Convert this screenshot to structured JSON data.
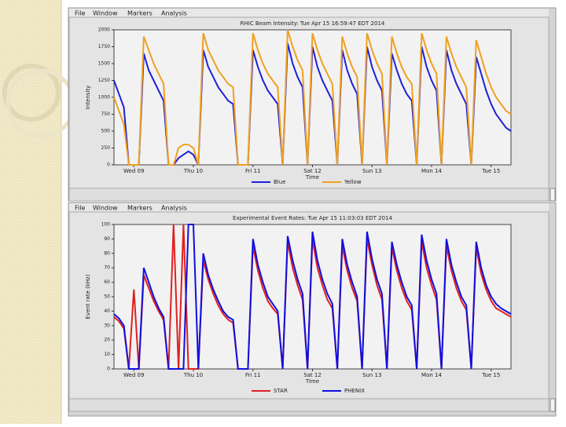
{
  "menus": [
    [
      "File",
      "Window",
      "Markers",
      "Analysis"
    ],
    [
      "File",
      "Window",
      "Markers",
      "Analysis"
    ]
  ],
  "chart_data": [
    {
      "type": "line",
      "title": "RHIC Beam Intensity: Tue Apr 15 16:59:47 EDT 2014",
      "x_label": "Time",
      "y_label": "Intensity",
      "x": [
        0,
        2,
        4,
        6,
        8,
        10,
        12,
        14,
        16,
        18,
        20,
        22,
        24,
        26,
        28,
        30,
        32,
        34,
        36,
        38,
        40,
        42,
        44,
        46,
        48,
        50,
        52,
        54,
        56,
        58,
        60,
        62,
        64,
        66,
        68,
        70,
        72,
        74,
        76,
        78,
        80,
        82,
        84,
        86,
        88,
        90,
        92,
        94,
        96,
        98,
        100,
        102,
        104,
        106,
        108,
        110,
        112,
        114,
        116,
        118,
        120,
        122,
        124,
        126,
        128,
        130,
        132,
        134,
        136,
        138,
        140,
        142,
        144,
        146,
        148,
        150,
        152,
        154,
        156,
        158,
        160
      ],
      "xlim": [
        0,
        160
      ],
      "xticks": [
        {
          "value": 8,
          "label": "Wed 09"
        },
        {
          "value": 32,
          "label": "Thu 10"
        },
        {
          "value": 56,
          "label": "Fri 11"
        },
        {
          "value": 80,
          "label": "Sat 12"
        },
        {
          "value": 104,
          "label": "Sun 13"
        },
        {
          "value": 128,
          "label": "Mon 14"
        },
        {
          "value": 152,
          "label": "Tue 15"
        }
      ],
      "ylim": [
        0,
        2000
      ],
      "yticks": [
        0,
        250,
        500,
        750,
        1000,
        1250,
        1500,
        1750,
        2000
      ],
      "series": [
        {
          "name": "Blue",
          "color": "#2020d8",
          "values": [
            1250,
            1050,
            850,
            0,
            0,
            0,
            1650,
            1400,
            1250,
            1100,
            950,
            0,
            0,
            100,
            150,
            200,
            150,
            0,
            1700,
            1450,
            1300,
            1150,
            1050,
            950,
            900,
            0,
            0,
            0,
            1700,
            1450,
            1250,
            1100,
            1000,
            900,
            0,
            1800,
            1500,
            1300,
            1150,
            0,
            1750,
            1450,
            1250,
            1100,
            950,
            0,
            1700,
            1400,
            1200,
            1050,
            0,
            1750,
            1450,
            1250,
            1100,
            0,
            1650,
            1400,
            1200,
            1050,
            950,
            0,
            1750,
            1450,
            1250,
            1100,
            0,
            1700,
            1400,
            1200,
            1050,
            900,
            0,
            1600,
            1350,
            1100,
            900,
            750,
            650,
            550,
            500
          ]
        },
        {
          "name": "Yellow",
          "color": "#f0a020",
          "values": [
            1000,
            800,
            600,
            0,
            0,
            0,
            1900,
            1700,
            1500,
            1350,
            1200,
            0,
            0,
            250,
            300,
            300,
            250,
            0,
            1950,
            1700,
            1550,
            1400,
            1300,
            1200,
            1150,
            0,
            0,
            0,
            1950,
            1700,
            1500,
            1350,
            1250,
            1150,
            0,
            2000,
            1750,
            1550,
            1400,
            0,
            1950,
            1700,
            1500,
            1350,
            1200,
            0,
            1900,
            1650,
            1450,
            1300,
            0,
            1950,
            1700,
            1500,
            1350,
            0,
            1900,
            1650,
            1450,
            1300,
            1200,
            0,
            1950,
            1700,
            1500,
            1350,
            0,
            1900,
            1650,
            1450,
            1300,
            1150,
            0,
            1850,
            1600,
            1350,
            1150,
            1000,
            900,
            800,
            750
          ]
        }
      ]
    },
    {
      "type": "line",
      "title": "Experimental Event Rates: Tue Apr 15 11:03:03 EDT 2014",
      "x_label": "Time",
      "y_label": "Event rate (kHz)",
      "x": [
        0,
        2,
        4,
        6,
        8,
        10,
        12,
        14,
        16,
        18,
        20,
        22,
        24,
        26,
        28,
        30,
        32,
        34,
        36,
        38,
        40,
        42,
        44,
        46,
        48,
        50,
        52,
        54,
        56,
        58,
        60,
        62,
        64,
        66,
        68,
        70,
        72,
        74,
        76,
        78,
        80,
        82,
        84,
        86,
        88,
        90,
        92,
        94,
        96,
        98,
        100,
        102,
        104,
        106,
        108,
        110,
        112,
        114,
        116,
        118,
        120,
        122,
        124,
        126,
        128,
        130,
        132,
        134,
        136,
        138,
        140,
        142,
        144,
        146,
        148,
        150,
        152,
        154,
        156,
        158,
        160
      ],
      "xlim": [
        0,
        160
      ],
      "xticks": [
        {
          "value": 8,
          "label": "Wed 09"
        },
        {
          "value": 32,
          "label": "Thu 10"
        },
        {
          "value": 56,
          "label": "Fri 11"
        },
        {
          "value": 80,
          "label": "Sat 12"
        },
        {
          "value": 104,
          "label": "Sun 13"
        },
        {
          "value": 128,
          "label": "Mon 14"
        },
        {
          "value": 152,
          "label": "Tue 15"
        }
      ],
      "ylim": [
        0,
        100
      ],
      "yticks": [
        0,
        10,
        20,
        30,
        40,
        50,
        60,
        70,
        80,
        90,
        100
      ],
      "series": [
        {
          "name": "STAR",
          "color": "#e02020",
          "values": [
            36,
            33,
            28,
            0,
            55,
            0,
            65,
            56,
            47,
            40,
            34,
            0,
            100,
            0,
            100,
            0,
            0,
            0,
            75,
            62,
            52,
            44,
            38,
            34,
            32,
            0,
            0,
            0,
            85,
            68,
            56,
            47,
            42,
            38,
            0,
            88,
            70,
            58,
            48,
            0,
            90,
            70,
            58,
            48,
            42,
            0,
            85,
            68,
            56,
            47,
            0,
            90,
            72,
            58,
            48,
            0,
            84,
            68,
            56,
            47,
            41,
            0,
            88,
            70,
            58,
            48,
            0,
            85,
            68,
            56,
            47,
            41,
            0,
            84,
            66,
            55,
            47,
            42,
            40,
            38,
            36
          ]
        },
        {
          "name": "PHENIX",
          "color": "#1010e0",
          "values": [
            38,
            35,
            30,
            0,
            0,
            0,
            70,
            60,
            50,
            42,
            36,
            0,
            0,
            0,
            0,
            100,
            100,
            0,
            80,
            65,
            55,
            47,
            40,
            36,
            34,
            0,
            0,
            0,
            90,
            72,
            60,
            50,
            45,
            40,
            0,
            92,
            75,
            62,
            52,
            0,
            95,
            75,
            62,
            52,
            45,
            0,
            90,
            72,
            60,
            50,
            0,
            95,
            76,
            62,
            52,
            0,
            88,
            72,
            60,
            50,
            44,
            0,
            93,
            75,
            62,
            52,
            0,
            90,
            72,
            60,
            50,
            44,
            0,
            88,
            70,
            58,
            50,
            45,
            42,
            40,
            38
          ]
        }
      ]
    }
  ]
}
